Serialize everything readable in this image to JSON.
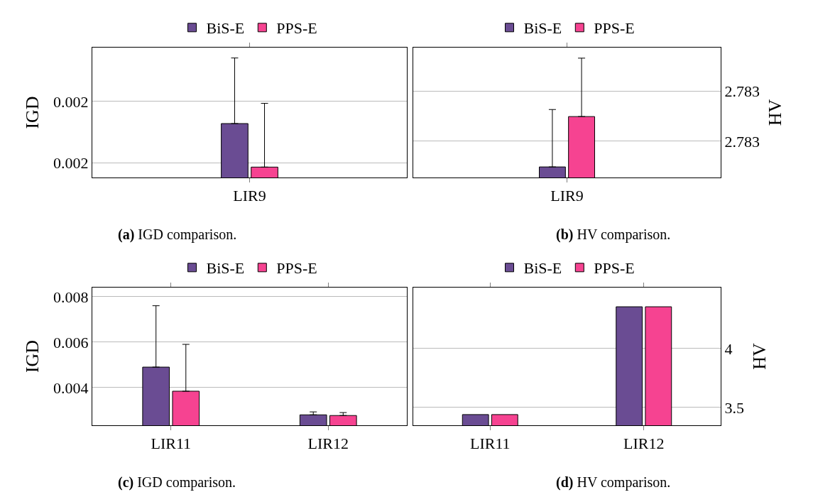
{
  "chart_data": [
    {
      "type": "bar",
      "title": "(a) IGD comparison.",
      "ylabel": "IGD",
      "categories": [
        "LIR9"
      ],
      "legend": "top",
      "grid": "y",
      "ylim": [
        0.001976,
        0.002188
      ],
      "yticks": [
        {
          "value": 0.002,
          "label": "0.002"
        },
        {
          "value": 0.0021,
          "label": "0.002"
        }
      ],
      "series": [
        {
          "name": "BiS-E",
          "color": "#6a4c93",
          "values": [
            0.002064
          ],
          "errors": [
            [
              0.002064,
              0.002171
            ]
          ]
        },
        {
          "name": "PPS-E",
          "color": "#f64391",
          "values": [
            0.001993
          ],
          "errors": [
            [
              0.001993,
              0.002097
            ]
          ]
        }
      ]
    },
    {
      "type": "bar",
      "title": "(b) HV comparison.",
      "y2label": "HV",
      "categories": [
        "LIR9"
      ],
      "legend": "top",
      "grid": "y",
      "y2lim": [
        2.783028,
        2.783286
      ],
      "y2ticks": [
        {
          "value": 2.7831,
          "label": "2.783"
        },
        {
          "value": 2.7832,
          "label": "2.783"
        }
      ],
      "series": [
        {
          "name": "BiS-E",
          "color": "#6a4c93",
          "axis": "y2",
          "values": [
            2.783049
          ],
          "errors": [
            [
              2.783049,
              2.783163
            ]
          ]
        },
        {
          "name": "PPS-E",
          "color": "#f64391",
          "axis": "y2",
          "values": [
            2.783149
          ],
          "errors": [
            [
              2.783149,
              2.783265
            ]
          ]
        }
      ]
    },
    {
      "type": "bar",
      "title": "(c) IGD comparison.",
      "ylabel": "IGD",
      "categories": [
        "LIR11",
        "LIR12"
      ],
      "legend": "top",
      "grid": "y",
      "ylim": [
        0.00234,
        0.0084
      ],
      "yticks": [
        0.004,
        0.006,
        0.008
      ],
      "series": [
        {
          "name": "BiS-E",
          "color": "#6a4c93",
          "values": [
            0.0049,
            0.0028
          ],
          "errors": [
            [
              0.0049,
              0.0076
            ],
            [
              0.0028,
              0.00293
            ]
          ]
        },
        {
          "name": "PPS-E",
          "color": "#f64391",
          "values": [
            0.00384,
            0.00277
          ],
          "errors": [
            [
              0.00384,
              0.0059
            ],
            [
              0.00277,
              0.0029
            ]
          ]
        }
      ]
    },
    {
      "type": "bar",
      "title": "(d) HV comparison.",
      "y2label": "HV",
      "categories": [
        "LIR11",
        "LIR12"
      ],
      "legend": "top",
      "grid": "y",
      "y2lim": [
        3.349,
        4.518
      ],
      "y2ticks": [
        3.5,
        4
      ],
      "series": [
        {
          "name": "BiS-E",
          "color": "#6a4c93",
          "axis": "y2",
          "values": [
            3.44,
            4.355
          ]
        },
        {
          "name": "PPS-E",
          "color": "#f64391",
          "axis": "y2",
          "values": [
            3.44,
            4.355
          ]
        }
      ]
    }
  ]
}
